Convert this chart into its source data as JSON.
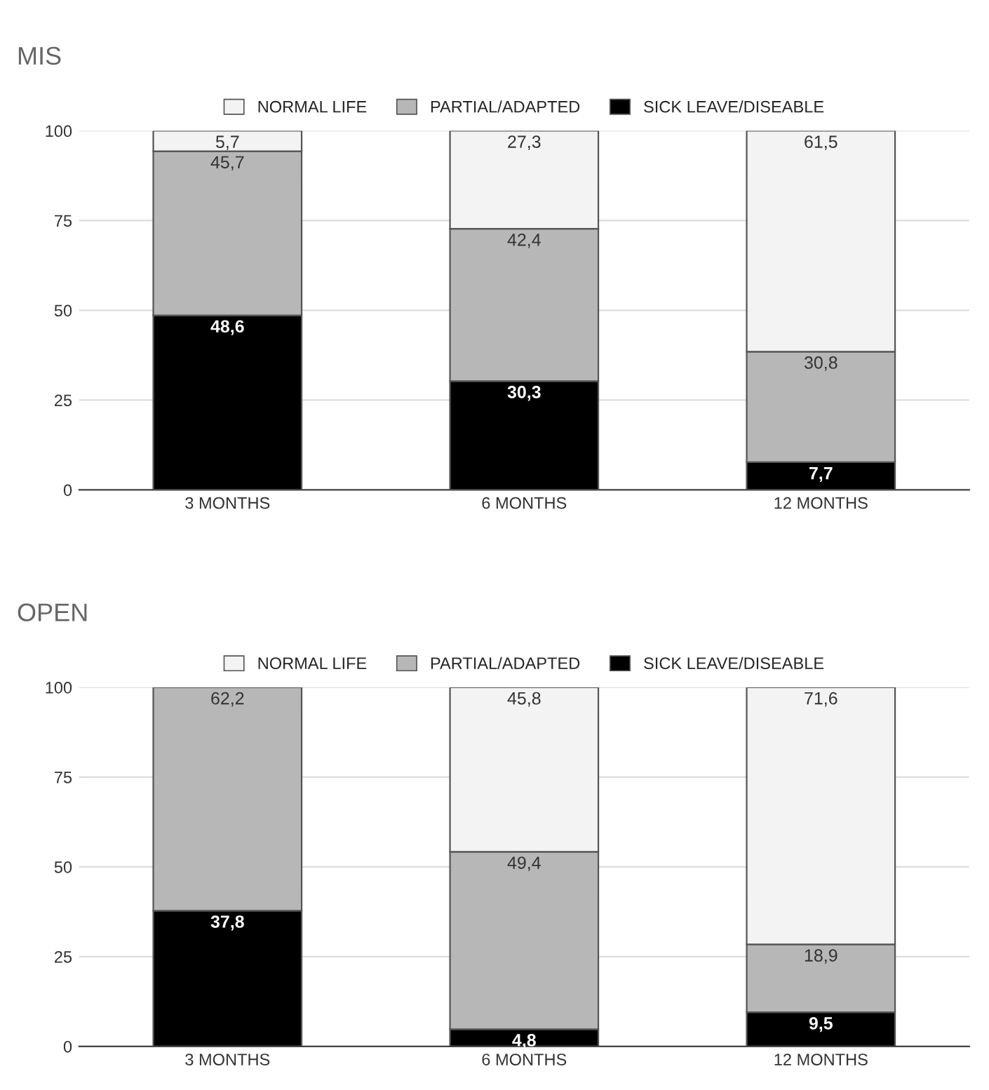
{
  "chart_data": [
    {
      "type": "bar",
      "title": "MIS",
      "stacked": true,
      "categories": [
        "3 MONTHS",
        "6 MONTHS",
        "12 MONTHS"
      ],
      "ylim": [
        0,
        100
      ],
      "yticks": [
        0,
        25,
        50,
        75,
        100
      ],
      "grid": "y",
      "legend": "top",
      "series": [
        {
          "name": "SICK LEAVE/DISEABLE",
          "color": "#000000",
          "values": [
            48.6,
            30.3,
            7.7
          ],
          "value_labels": [
            "48,6",
            "30,3",
            "7,7"
          ]
        },
        {
          "name": "PARTIAL/ADAPTED",
          "color": "#b7b7b7",
          "values": [
            45.7,
            42.4,
            30.8
          ],
          "value_labels": [
            "45,7",
            "42,4",
            "30,8"
          ]
        },
        {
          "name": "NORMAL LIFE",
          "color": "#f3f3f3",
          "values": [
            5.7,
            27.3,
            61.5
          ],
          "value_labels": [
            "5,7",
            "27,3",
            "61,5"
          ]
        }
      ]
    },
    {
      "type": "bar",
      "title": "OPEN",
      "stacked": true,
      "categories": [
        "3 MONTHS",
        "6 MONTHS",
        "12 MONTHS"
      ],
      "ylim": [
        0,
        100
      ],
      "yticks": [
        0,
        25,
        50,
        75,
        100
      ],
      "grid": "y",
      "legend": "top",
      "series": [
        {
          "name": "SICK LEAVE/DISEABLE",
          "color": "#000000",
          "values": [
            37.8,
            4.8,
            9.5
          ],
          "value_labels": [
            "37,8",
            "4,8",
            "9,5"
          ]
        },
        {
          "name": "PARTIAL/ADAPTED",
          "color": "#b7b7b7",
          "values": [
            62.2,
            49.4,
            18.9
          ],
          "value_labels": [
            "62,2",
            "49,4",
            "18,9"
          ]
        },
        {
          "name": "NORMAL LIFE",
          "color": "#f3f3f3",
          "values": [
            0,
            45.8,
            71.6
          ],
          "value_labels": [
            null,
            "45,8",
            "71,6"
          ]
        }
      ]
    }
  ]
}
